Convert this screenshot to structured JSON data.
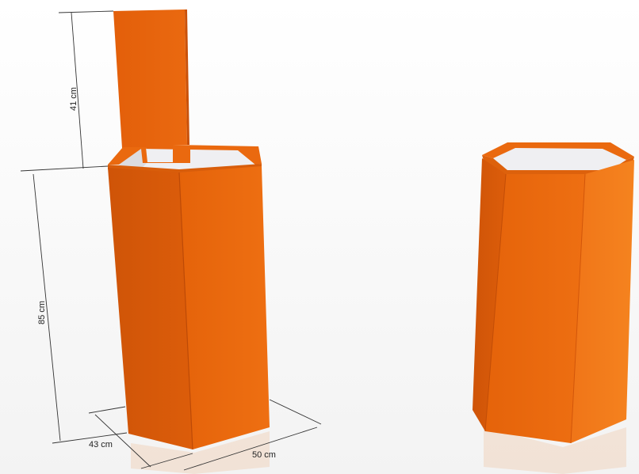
{
  "dimensions": {
    "header_height": "41 cm",
    "body_height": "85 cm",
    "depth": "43 cm",
    "width": "50 cm"
  },
  "colors": {
    "orange_front": "#ea6a0c",
    "orange_side": "#d4580a",
    "orange_right": "#f07a1c",
    "orange_rim": "#e8670d",
    "interior": "#f2f2f4",
    "background": "#ffffff"
  }
}
